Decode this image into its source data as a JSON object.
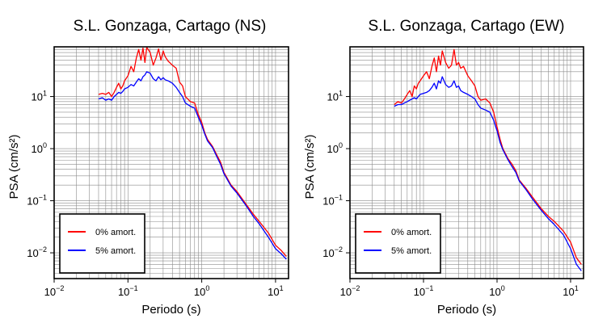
{
  "chart_data": [
    {
      "type": "line",
      "title": "S.L. Gonzaga, Cartago (NS)",
      "xlabel": "Periodo (s)",
      "ylabel": "PSA (cm/s²)",
      "x_scale": "log",
      "y_scale": "log",
      "xlim": [
        0.01,
        15
      ],
      "ylim": [
        0.0032,
        90
      ],
      "grid": true,
      "legend_position": "bottom-left",
      "x_ticks": [
        {
          "value": 0.01,
          "base": "10",
          "exp": "−2"
        },
        {
          "value": 0.1,
          "base": "10",
          "exp": "−1"
        },
        {
          "value": 1,
          "base": "10",
          "exp": "0"
        },
        {
          "value": 10,
          "base": "10",
          "exp": "1"
        }
      ],
      "y_ticks": [
        {
          "value": 0.01,
          "base": "10",
          "exp": "−2"
        },
        {
          "value": 0.1,
          "base": "10",
          "exp": "−1"
        },
        {
          "value": 1,
          "base": "10",
          "exp": "0"
        },
        {
          "value": 10,
          "base": "10",
          "exp": "1"
        }
      ],
      "series": [
        {
          "name": "0% amort.",
          "color": "#ff0000",
          "x": [
            0.04,
            0.045,
            0.05,
            0.055,
            0.06,
            0.065,
            0.07,
            0.075,
            0.08,
            0.085,
            0.09,
            0.1,
            0.11,
            0.12,
            0.13,
            0.14,
            0.15,
            0.16,
            0.17,
            0.18,
            0.2,
            0.22,
            0.24,
            0.26,
            0.28,
            0.3,
            0.32,
            0.35,
            0.4,
            0.45,
            0.5,
            0.55,
            0.6,
            0.7,
            0.8,
            0.9,
            1.0,
            1.1,
            1.2,
            1.4,
            1.6,
            1.8,
            2.0,
            2.5,
            3.0,
            4.0,
            5.0,
            6.0,
            8.0,
            10.0,
            12.0,
            14.0
          ],
          "y": [
            11,
            11.5,
            11,
            12,
            10,
            12,
            15,
            18,
            14,
            16,
            20,
            25,
            38,
            30,
            55,
            80,
            50,
            85,
            45,
            88,
            70,
            40,
            55,
            82,
            50,
            75,
            58,
            48,
            40,
            35,
            19,
            16,
            10,
            8,
            7.5,
            4.5,
            3.2,
            2.0,
            1.5,
            1.1,
            0.75,
            0.55,
            0.35,
            0.2,
            0.15,
            0.085,
            0.055,
            0.04,
            0.024,
            0.014,
            0.011,
            0.0085
          ]
        },
        {
          "name": "5% amort.",
          "color": "#0000ff",
          "x": [
            0.04,
            0.045,
            0.05,
            0.055,
            0.06,
            0.065,
            0.07,
            0.075,
            0.08,
            0.085,
            0.09,
            0.1,
            0.11,
            0.12,
            0.13,
            0.14,
            0.15,
            0.16,
            0.17,
            0.18,
            0.2,
            0.22,
            0.24,
            0.26,
            0.28,
            0.3,
            0.32,
            0.35,
            0.4,
            0.45,
            0.5,
            0.55,
            0.6,
            0.7,
            0.8,
            0.9,
            1.0,
            1.1,
            1.2,
            1.4,
            1.6,
            1.8,
            2.0,
            2.5,
            3.0,
            4.0,
            5.0,
            6.0,
            8.0,
            10.0,
            12.0,
            14.0
          ],
          "y": [
            9,
            9.5,
            8.5,
            9,
            8.5,
            10,
            11,
            12,
            11.5,
            12.5,
            14,
            15,
            17,
            16,
            19,
            22,
            20,
            24,
            26,
            30,
            28,
            22,
            20,
            24,
            21,
            23,
            21,
            20,
            18,
            15,
            12,
            10,
            7.5,
            6.5,
            6,
            4,
            2.8,
            1.9,
            1.4,
            1.05,
            0.7,
            0.5,
            0.33,
            0.19,
            0.14,
            0.08,
            0.05,
            0.036,
            0.02,
            0.012,
            0.0095,
            0.0075
          ]
        }
      ]
    },
    {
      "type": "line",
      "title": "S.L. Gonzaga, Cartago (EW)",
      "xlabel": "Periodo (s)",
      "ylabel": "PSA (cm/s²)",
      "x_scale": "log",
      "y_scale": "log",
      "xlim": [
        0.01,
        15
      ],
      "ylim": [
        0.0032,
        90
      ],
      "grid": true,
      "legend_position": "bottom-left",
      "x_ticks": [
        {
          "value": 0.01,
          "base": "10",
          "exp": "−2"
        },
        {
          "value": 0.1,
          "base": "10",
          "exp": "−1"
        },
        {
          "value": 1,
          "base": "10",
          "exp": "0"
        },
        {
          "value": 10,
          "base": "10",
          "exp": "1"
        }
      ],
      "y_ticks": [
        {
          "value": 0.01,
          "base": "10",
          "exp": "−2"
        },
        {
          "value": 0.1,
          "base": "10",
          "exp": "−1"
        },
        {
          "value": 1,
          "base": "10",
          "exp": "0"
        },
        {
          "value": 10,
          "base": "10",
          "exp": "1"
        }
      ],
      "series": [
        {
          "name": "0% amort.",
          "color": "#ff0000",
          "x": [
            0.04,
            0.045,
            0.05,
            0.055,
            0.06,
            0.065,
            0.07,
            0.075,
            0.08,
            0.085,
            0.09,
            0.1,
            0.11,
            0.12,
            0.13,
            0.14,
            0.15,
            0.16,
            0.17,
            0.18,
            0.2,
            0.22,
            0.24,
            0.26,
            0.28,
            0.3,
            0.32,
            0.35,
            0.4,
            0.45,
            0.5,
            0.55,
            0.6,
            0.7,
            0.8,
            0.9,
            1.0,
            1.1,
            1.2,
            1.4,
            1.6,
            1.8,
            2.0,
            2.5,
            3.0,
            4.0,
            5.0,
            6.0,
            8.0,
            10.0,
            12.0,
            14.0
          ],
          "y": [
            7,
            8,
            7.5,
            9,
            11,
            13,
            10,
            16,
            14,
            18,
            20,
            25,
            30,
            22,
            38,
            55,
            30,
            60,
            40,
            75,
            45,
            35,
            40,
            80,
            40,
            45,
            35,
            38,
            25,
            20,
            16,
            10,
            8.5,
            9,
            7.5,
            5,
            2.6,
            1.5,
            1.0,
            0.65,
            0.5,
            0.38,
            0.25,
            0.17,
            0.12,
            0.07,
            0.05,
            0.04,
            0.026,
            0.016,
            0.008,
            0.006
          ]
        },
        {
          "name": "5% amort.",
          "color": "#0000ff",
          "x": [
            0.04,
            0.045,
            0.05,
            0.055,
            0.06,
            0.065,
            0.07,
            0.075,
            0.08,
            0.085,
            0.09,
            0.1,
            0.11,
            0.12,
            0.13,
            0.14,
            0.15,
            0.16,
            0.17,
            0.18,
            0.2,
            0.22,
            0.24,
            0.26,
            0.28,
            0.3,
            0.32,
            0.35,
            0.4,
            0.45,
            0.5,
            0.55,
            0.6,
            0.7,
            0.8,
            0.9,
            1.0,
            1.1,
            1.2,
            1.4,
            1.6,
            1.8,
            2.0,
            2.5,
            3.0,
            4.0,
            5.0,
            6.0,
            8.0,
            10.0,
            12.0,
            14.0
          ],
          "y": [
            6.5,
            7,
            7,
            7.5,
            8,
            8.5,
            9,
            9.5,
            9,
            10,
            11,
            11.5,
            12,
            13,
            15,
            18,
            14,
            20,
            18,
            24,
            17,
            15,
            16,
            20,
            15,
            16,
            13,
            12,
            11,
            10,
            9,
            7,
            6,
            5.5,
            5,
            3.5,
            2.2,
            1.3,
            0.95,
            0.62,
            0.45,
            0.35,
            0.24,
            0.16,
            0.11,
            0.065,
            0.045,
            0.035,
            0.022,
            0.012,
            0.006,
            0.0045
          ]
        }
      ]
    }
  ]
}
